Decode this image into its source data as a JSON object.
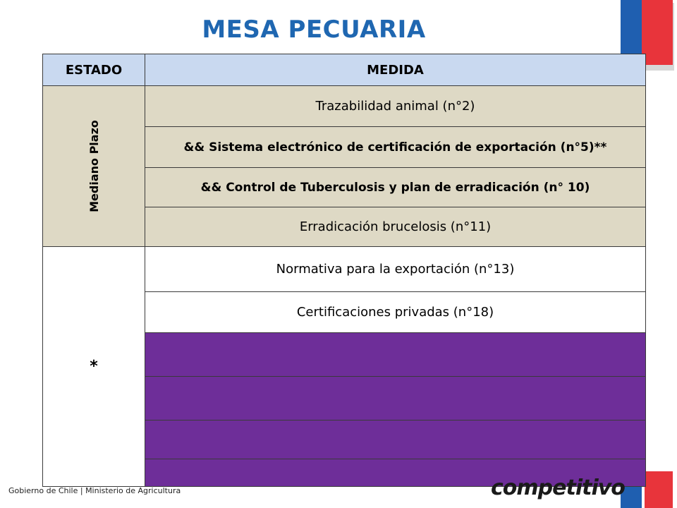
{
  "title": "MESA PECUARIA",
  "table": {
    "headers": [
      "ESTADO",
      "MEDIDA"
    ],
    "group1_label": "Mediano Plazo",
    "group2_label": "*",
    "rows": [
      "Trazabilidad animal (n°2)",
      "&& Sistema electrónico de certificación de exportación  (n°5)**",
      "&& Control de Tuberculosis y plan de erradicación (n° 10)",
      "Erradicación brucelosis (n°11)",
      "Normativa para la exportación (n°13)",
      "Certificaciones privadas (n°18)"
    ],
    "purple_rows": 4
  },
  "footer": "Gobierno de Chile | Ministerio de Agricultura",
  "logo_text": "competitivo",
  "colors": {
    "title": "#1f67b1",
    "header_bg": "#c9d9f0",
    "beige": "#ded9c5",
    "purple": "#6e2e99",
    "flag_blue": "#1f5fb0",
    "flag_red": "#e8343b"
  }
}
